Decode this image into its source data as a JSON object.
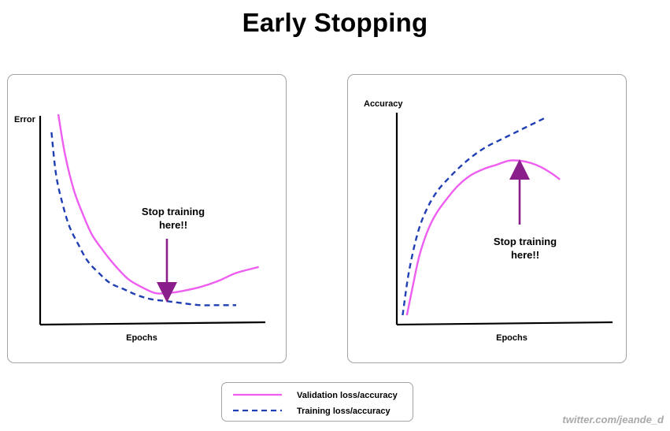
{
  "title": "Early Stopping",
  "watermark": "twitter.com/jeande_d",
  "colors": {
    "validation": "#ee5ef0",
    "training": "#1f3fb3",
    "arrow": "#8a1f8c",
    "axis": "#000000",
    "border": "#a3a3a3"
  },
  "legend": [
    {
      "label": "Validation loss/accuracy",
      "style": "solid",
      "color": "#ee5ef0"
    },
    {
      "label": "Training loss/accuracy",
      "style": "dashed",
      "color": "#1f3fb3"
    }
  ],
  "chart_data": [
    {
      "type": "line",
      "title": "",
      "xlabel": "Epochs",
      "ylabel": "Error",
      "grid": false,
      "annotation": {
        "text": [
          "Stop training",
          "here!!"
        ],
        "at_x": 50
      },
      "xlim": [
        0,
        100
      ],
      "ylim": [
        0,
        100
      ],
      "series": [
        {
          "name": "Validation loss/accuracy",
          "style": "solid",
          "color": "#ee5ef0",
          "x": [
            7,
            10,
            14,
            18,
            22,
            27,
            32,
            38,
            44,
            50,
            56,
            62,
            70,
            78,
            86,
            96
          ],
          "y": [
            100,
            80,
            62,
            50,
            40,
            32,
            25,
            18,
            14,
            11,
            11,
            12,
            14,
            17,
            21,
            24
          ]
        },
        {
          "name": "Training loss/accuracy",
          "style": "dashed",
          "color": "#1f3fb3",
          "x": [
            4,
            6,
            9,
            12,
            16,
            20,
            25,
            30,
            36,
            42,
            48,
            55,
            62,
            70,
            78,
            86
          ],
          "y": [
            91,
            70,
            55,
            44,
            35,
            27,
            21,
            16,
            13,
            10,
            8,
            7,
            6,
            5,
            5,
            5
          ]
        }
      ]
    },
    {
      "type": "line",
      "title": "",
      "xlabel": "Epochs",
      "ylabel": "Accuracy",
      "grid": false,
      "annotation": {
        "text": [
          "Stop training",
          "here!!"
        ],
        "at_x": 57
      },
      "xlim": [
        0,
        100
      ],
      "ylim": [
        0,
        100
      ],
      "series": [
        {
          "name": "Validation loss/accuracy",
          "style": "solid",
          "color": "#ee5ef0",
          "x": [
            4,
            7,
            10,
            14,
            18,
            23,
            28,
            34,
            40,
            46,
            52,
            57,
            62,
            67,
            72,
            76
          ],
          "y": [
            3,
            18,
            32,
            44,
            52,
            59,
            65,
            70,
            73,
            75,
            77,
            77,
            76,
            74,
            71,
            68
          ]
        },
        {
          "name": "Training loss/accuracy",
          "style": "dashed",
          "color": "#1f3fb3",
          "x": [
            2,
            5,
            9,
            13,
            18,
            24,
            30,
            36,
            42,
            48,
            54,
            60,
            66,
            70
          ],
          "y": [
            3,
            24,
            42,
            53,
            62,
            69,
            75,
            80,
            84,
            87,
            90,
            93,
            96,
            98
          ]
        }
      ]
    }
  ]
}
